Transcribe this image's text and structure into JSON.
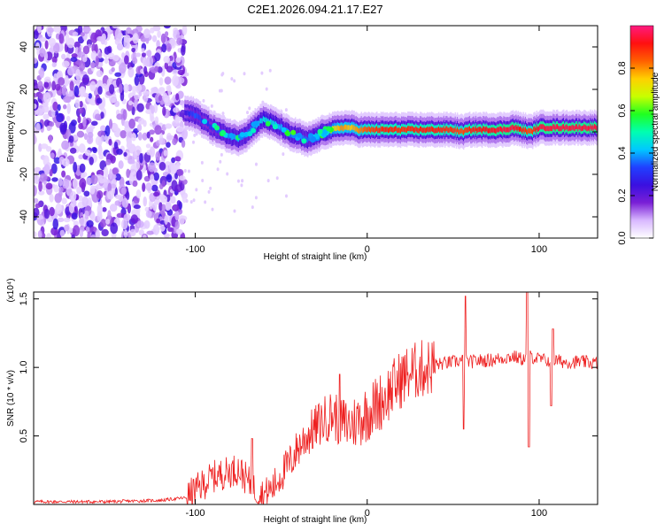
{
  "title": "C2E1.2026.094.21.17.E27",
  "chart_data": [
    {
      "type": "heatmap",
      "name": "spectrogram",
      "xlabel": "Height of straight line (km)",
      "ylabel": "Frequency (Hz)",
      "xlim": [
        -194,
        134
      ],
      "ylim": [
        -50,
        50
      ],
      "xticks": [
        -100,
        0,
        100
      ],
      "xtick_labels": [
        "-100",
        "0",
        "100"
      ],
      "yticks": [
        -40,
        -20,
        0,
        20,
        40
      ],
      "ytick_labels": [
        "-40",
        "-20",
        "0",
        "20",
        "40"
      ],
      "colorbar": {
        "label": "Normalized spectral amplitude",
        "range": [
          0,
          1
        ],
        "ticks": [
          0,
          0.2,
          0.4,
          0.6,
          0.8
        ],
        "tick_labels": [
          "0.0",
          "0.2",
          "0.4",
          "0.6",
          "0.8"
        ],
        "colors": [
          "#ffffff",
          "#d8b8ff",
          "#7a1fd6",
          "#3a10e0",
          "#2040ff",
          "#00c8ff",
          "#00ffb0",
          "#20ff20",
          "#c8ff00",
          "#ffd000",
          "#ff6000",
          "#ff1010",
          "#ff1a80"
        ]
      },
      "noise_region_x": [
        -194,
        -106
      ],
      "ridge": {
        "x": [
          -106,
          -100,
          -95,
          -90,
          -85,
          -80,
          -75,
          -70,
          -65,
          -60,
          -55,
          -50,
          -45,
          -40,
          -35,
          -30,
          -25,
          -20,
          -15,
          -10,
          -5,
          0,
          10,
          20,
          30,
          40,
          50,
          55,
          60,
          70,
          80,
          85,
          90,
          95,
          100,
          110,
          120,
          134
        ],
        "y": [
          9,
          8,
          5,
          2,
          0,
          -2,
          -3,
          -1,
          3,
          6,
          4,
          2,
          -1,
          -2,
          -4,
          -2,
          0,
          1,
          2,
          2,
          1,
          1,
          1,
          1,
          1,
          1,
          1,
          0,
          1,
          1,
          1,
          2,
          1,
          0,
          2,
          2,
          2,
          2
        ],
        "amplitude": [
          0.25,
          0.35,
          0.3,
          0.3,
          0.35,
          0.4,
          0.4,
          0.35,
          0.4,
          0.45,
          0.45,
          0.4,
          0.4,
          0.4,
          0.35,
          0.45,
          0.5,
          0.7,
          0.8,
          0.75,
          0.8,
          0.85,
          0.9,
          0.88,
          0.9,
          0.9,
          0.88,
          0.85,
          0.9,
          0.92,
          0.95,
          0.95,
          0.9,
          0.85,
          0.95,
          0.95,
          0.95,
          0.95
        ]
      }
    },
    {
      "type": "line",
      "name": "snr",
      "xlabel": "Height of straight line (km)",
      "ylabel": "SNR (10 * v/v)",
      "scale_label": "(x10⁴)",
      "xlim": [
        -194,
        134
      ],
      "ylim": [
        0,
        1.55
      ],
      "xticks": [
        -100,
        0,
        100
      ],
      "xtick_labels": [
        "-100",
        "0",
        "100"
      ],
      "yticks": [
        0.5,
        1.0,
        1.5
      ],
      "ytick_labels": [
        "0.5",
        "1.0",
        "1.5"
      ],
      "color": "#ee2020",
      "x": [
        -194,
        -150,
        -120,
        -105,
        -100,
        -95,
        -90,
        -85,
        -80,
        -75,
        -70,
        -65,
        -60,
        -55,
        -50,
        -45,
        -40,
        -35,
        -30,
        -25,
        -20,
        -15,
        -10,
        -5,
        0,
        5,
        10,
        15,
        20,
        25,
        30,
        35,
        40,
        45,
        50,
        55,
        60,
        65,
        70,
        75,
        80,
        85,
        90,
        95,
        100,
        105,
        110,
        115,
        120,
        125,
        134
      ],
      "y": [
        0.02,
        0.02,
        0.03,
        0.05,
        0.1,
        0.15,
        0.2,
        0.22,
        0.24,
        0.26,
        0.18,
        0.1,
        0.07,
        0.12,
        0.22,
        0.3,
        0.42,
        0.5,
        0.56,
        0.62,
        0.66,
        0.6,
        0.58,
        0.62,
        0.67,
        0.72,
        0.78,
        0.85,
        0.92,
        0.96,
        0.98,
        1.0,
        1.02,
        1.03,
        1.04,
        1.05,
        1.04,
        1.05,
        1.05,
        1.06,
        1.07,
        1.08,
        1.06,
        1.08,
        1.06,
        1.05,
        1.05,
        1.04,
        1.04,
        1.04,
        1.03
      ]
    }
  ]
}
